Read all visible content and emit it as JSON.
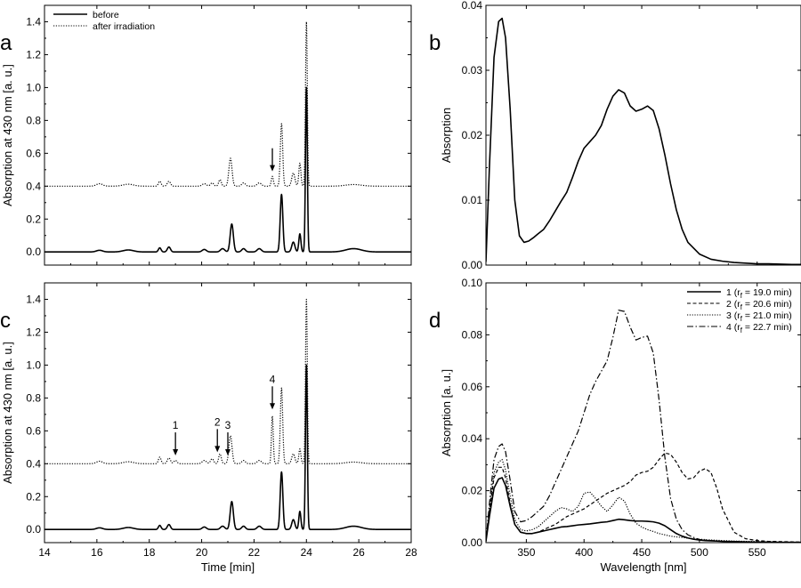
{
  "chart_data": [
    {
      "panel_label": "a",
      "type": "line",
      "xlabel": "",
      "ylabel": "Absorption at 430 nm [a. u.]",
      "xlim": [
        14,
        28
      ],
      "ylim": [
        -0.08,
        1.5
      ],
      "x_ticks": [
        14,
        16,
        18,
        20,
        22,
        24,
        26,
        28
      ],
      "y_ticks": [
        0.0,
        0.2,
        0.4,
        0.6,
        0.8,
        1.0,
        1.2,
        1.4
      ],
      "legend_position": "top-left",
      "series": [
        {
          "name": "before",
          "style": "solid",
          "baseline": 0.0,
          "peaks": [
            [
              16.1,
              0.01,
              0.12
            ],
            [
              17.2,
              0.012,
              0.2
            ],
            [
              18.4,
              0.025,
              0.05
            ],
            [
              18.75,
              0.03,
              0.06
            ],
            [
              20.1,
              0.015,
              0.08
            ],
            [
              20.8,
              0.02,
              0.08
            ],
            [
              21.15,
              0.17,
              0.06
            ],
            [
              21.6,
              0.02,
              0.07
            ],
            [
              22.2,
              0.02,
              0.08
            ],
            [
              23.05,
              0.35,
              0.05
            ],
            [
              23.5,
              0.06,
              0.06
            ],
            [
              23.75,
              0.11,
              0.04
            ],
            [
              24.0,
              1.0,
              0.035
            ],
            [
              25.8,
              0.02,
              0.3
            ]
          ]
        },
        {
          "name": "after irradiation",
          "style": "dotted",
          "baseline": 0.4,
          "peaks": [
            [
              16.1,
              0.015,
              0.12
            ],
            [
              17.2,
              0.012,
              0.2
            ],
            [
              18.4,
              0.03,
              0.05
            ],
            [
              18.75,
              0.03,
              0.06
            ],
            [
              20.1,
              0.015,
              0.08
            ],
            [
              20.4,
              0.02,
              0.06
            ],
            [
              20.7,
              0.04,
              0.05
            ],
            [
              21.1,
              0.17,
              0.06
            ],
            [
              21.6,
              0.02,
              0.07
            ],
            [
              22.2,
              0.02,
              0.08
            ],
            [
              22.7,
              0.06,
              0.04
            ],
            [
              23.05,
              0.38,
              0.045
            ],
            [
              23.5,
              0.08,
              0.06
            ],
            [
              23.75,
              0.14,
              0.04
            ],
            [
              24.0,
              1.0,
              0.035
            ],
            [
              25.8,
              0.01,
              0.3
            ]
          ]
        }
      ],
      "annotations": [
        {
          "label": "",
          "x": 22.7,
          "y": 0.49
        }
      ]
    },
    {
      "panel_label": "b",
      "type": "line",
      "xlabel": "",
      "ylabel": "Absorption",
      "xlim": [
        315,
        588
      ],
      "ylim": [
        0,
        0.04
      ],
      "x_ticks": [
        350,
        400,
        450,
        500,
        550
      ],
      "x_ticks_labeled": false,
      "y_ticks": [
        0.0,
        0.01,
        0.02,
        0.03,
        0.04
      ],
      "series": [
        {
          "name": "",
          "style": "solid",
          "baseline": 0.0,
          "x": [
            315,
            318,
            322,
            326,
            329,
            332,
            336,
            340,
            344,
            348,
            352,
            356,
            360,
            365,
            370,
            375,
            380,
            385,
            390,
            395,
            400,
            405,
            410,
            415,
            420,
            425,
            430,
            435,
            440,
            445,
            450,
            455,
            460,
            465,
            470,
            475,
            480,
            485,
            490,
            500,
            510,
            520,
            530,
            540,
            550,
            560,
            570,
            580,
            588
          ],
          "y": [
            0.0005,
            0.015,
            0.032,
            0.0375,
            0.038,
            0.035,
            0.024,
            0.01,
            0.0045,
            0.0035,
            0.0037,
            0.0042,
            0.0048,
            0.0055,
            0.0068,
            0.0083,
            0.0098,
            0.0112,
            0.0135,
            0.016,
            0.018,
            0.019,
            0.02,
            0.0215,
            0.024,
            0.026,
            0.027,
            0.0265,
            0.0245,
            0.0237,
            0.024,
            0.0245,
            0.0238,
            0.021,
            0.017,
            0.0125,
            0.0085,
            0.0055,
            0.0035,
            0.0017,
            0.0009,
            0.0006,
            0.0004,
            0.0003,
            0.0002,
            0.0002,
            0.00015,
            0.0001,
            0.0001
          ]
        }
      ]
    },
    {
      "panel_label": "c",
      "type": "line",
      "xlabel": "Time [min]",
      "ylabel": "Absorption at 430 nm [a. u.]",
      "xlim": [
        14,
        28
      ],
      "ylim": [
        -0.08,
        1.5
      ],
      "x_ticks": [
        14,
        16,
        18,
        20,
        22,
        24,
        26,
        28
      ],
      "y_ticks": [
        0.0,
        0.2,
        0.4,
        0.6,
        0.8,
        1.0,
        1.2,
        1.4
      ],
      "series": [
        {
          "name": "before",
          "style": "solid",
          "baseline": 0.0,
          "peaks": [
            [
              16.1,
              0.01,
              0.12
            ],
            [
              17.2,
              0.012,
              0.2
            ],
            [
              18.4,
              0.025,
              0.05
            ],
            [
              18.75,
              0.03,
              0.06
            ],
            [
              20.1,
              0.015,
              0.08
            ],
            [
              20.8,
              0.02,
              0.08
            ],
            [
              21.15,
              0.17,
              0.06
            ],
            [
              21.6,
              0.02,
              0.07
            ],
            [
              22.2,
              0.02,
              0.08
            ],
            [
              23.05,
              0.35,
              0.05
            ],
            [
              23.5,
              0.06,
              0.06
            ],
            [
              23.75,
              0.11,
              0.04
            ],
            [
              24.0,
              1.0,
              0.035
            ],
            [
              25.8,
              0.02,
              0.3
            ]
          ]
        },
        {
          "name": "after irradiation",
          "style": "dotted",
          "baseline": 0.4,
          "peaks": [
            [
              16.1,
              0.015,
              0.12
            ],
            [
              17.2,
              0.012,
              0.2
            ],
            [
              18.4,
              0.04,
              0.05
            ],
            [
              18.75,
              0.035,
              0.06
            ],
            [
              19.0,
              0.02,
              0.06
            ],
            [
              20.1,
              0.02,
              0.08
            ],
            [
              20.4,
              0.03,
              0.06
            ],
            [
              20.7,
              0.06,
              0.05
            ],
            [
              21.1,
              0.17,
              0.06
            ],
            [
              21.6,
              0.02,
              0.07
            ],
            [
              22.2,
              0.02,
              0.08
            ],
            [
              22.7,
              0.29,
              0.035
            ],
            [
              23.05,
              0.46,
              0.045
            ],
            [
              23.5,
              0.06,
              0.06
            ],
            [
              23.75,
              0.09,
              0.04
            ],
            [
              24.0,
              1.0,
              0.035
            ],
            [
              25.8,
              0.01,
              0.3
            ]
          ]
        }
      ],
      "annotations": [
        {
          "label": "1",
          "x": 19.0,
          "y": 0.45
        },
        {
          "label": "2",
          "x": 20.6,
          "y": 0.47
        },
        {
          "label": "3",
          "x": 21.0,
          "y": 0.45
        },
        {
          "label": "4",
          "x": 22.7,
          "y": 0.73
        }
      ]
    },
    {
      "panel_label": "d",
      "type": "line",
      "xlabel": "Wavelength [nm]",
      "ylabel": "Absorption [a. u.]",
      "xlim": [
        315,
        588
      ],
      "ylim": [
        0,
        0.1
      ],
      "x_ticks": [
        350,
        400,
        450,
        500,
        550
      ],
      "y_ticks": [
        0.0,
        0.02,
        0.04,
        0.06,
        0.08,
        0.1
      ],
      "legend_position": "top-right",
      "x": [
        315,
        318,
        322,
        326,
        329,
        332,
        336,
        340,
        345,
        350,
        355,
        360,
        365,
        370,
        375,
        380,
        385,
        390,
        395,
        400,
        405,
        410,
        415,
        420,
        425,
        430,
        435,
        440,
        445,
        450,
        455,
        460,
        465,
        470,
        475,
        480,
        485,
        490,
        495,
        500,
        505,
        510,
        515,
        520,
        530,
        540,
        550,
        560,
        570,
        580,
        588
      ],
      "series": [
        {
          "name": "1 (r_f = 19.0 min)",
          "style": "solid",
          "y": [
            0.0005,
            0.01,
            0.021,
            0.0245,
            0.025,
            0.022,
            0.014,
            0.007,
            0.004,
            0.0035,
            0.0035,
            0.004,
            0.0045,
            0.005,
            0.0055,
            0.006,
            0.0062,
            0.0065,
            0.0068,
            0.007,
            0.0072,
            0.0075,
            0.0078,
            0.008,
            0.0085,
            0.009,
            0.0088,
            0.0085,
            0.0083,
            0.0083,
            0.0082,
            0.008,
            0.0075,
            0.0065,
            0.005,
            0.0035,
            0.0025,
            0.0018,
            0.0013,
            0.001,
            0.0008,
            0.0007,
            0.0006,
            0.0005,
            0.0004,
            0.0003,
            0.0002,
            0.0002,
            0.0001,
            0.0001,
            0.0001
          ]
        },
        {
          "name": "2 (r_f = 20.6 min)",
          "style": "dashed",
          "y": [
            0.0005,
            0.012,
            0.025,
            0.029,
            0.029,
            0.025,
            0.015,
            0.007,
            0.004,
            0.0035,
            0.0035,
            0.004,
            0.005,
            0.006,
            0.007,
            0.0085,
            0.01,
            0.011,
            0.012,
            0.013,
            0.0145,
            0.016,
            0.0175,
            0.019,
            0.02,
            0.021,
            0.022,
            0.0235,
            0.026,
            0.027,
            0.0275,
            0.029,
            0.032,
            0.0345,
            0.034,
            0.031,
            0.027,
            0.0245,
            0.025,
            0.0275,
            0.0285,
            0.027,
            0.021,
            0.013,
            0.004,
            0.0015,
            0.0008,
            0.0005,
            0.0004,
            0.0003,
            0.0002
          ]
        },
        {
          "name": "3 (r_f = 21.0 min)",
          "style": "dotted",
          "y": [
            0.0005,
            0.013,
            0.027,
            0.031,
            0.032,
            0.028,
            0.018,
            0.009,
            0.005,
            0.0045,
            0.005,
            0.006,
            0.008,
            0.01,
            0.012,
            0.0135,
            0.013,
            0.012,
            0.014,
            0.019,
            0.0195,
            0.017,
            0.014,
            0.012,
            0.0145,
            0.0175,
            0.016,
            0.011,
            0.0075,
            0.006,
            0.005,
            0.0043,
            0.0035,
            0.003,
            0.0025,
            0.0022,
            0.002,
            0.0017,
            0.0015,
            0.0013,
            0.0012,
            0.001,
            0.0009,
            0.0008,
            0.0006,
            0.0005,
            0.0004,
            0.0003,
            0.0002,
            0.0002,
            0.0001
          ]
        },
        {
          "name": "4 (r_f = 22.7 min)",
          "style": "dashdot",
          "y": [
            0.0005,
            0.015,
            0.032,
            0.037,
            0.038,
            0.035,
            0.024,
            0.012,
            0.008,
            0.0085,
            0.01,
            0.012,
            0.014,
            0.018,
            0.023,
            0.028,
            0.033,
            0.038,
            0.043,
            0.05,
            0.057,
            0.062,
            0.066,
            0.07,
            0.079,
            0.0895,
            0.089,
            0.083,
            0.078,
            0.079,
            0.0795,
            0.073,
            0.055,
            0.033,
            0.017,
            0.009,
            0.005,
            0.003,
            0.002,
            0.0012,
            0.001,
            0.0008,
            0.0006,
            0.0005,
            0.0004,
            0.0003,
            0.0002,
            0.0002,
            0.0001,
            0.0001,
            0.0001
          ]
        }
      ]
    }
  ]
}
